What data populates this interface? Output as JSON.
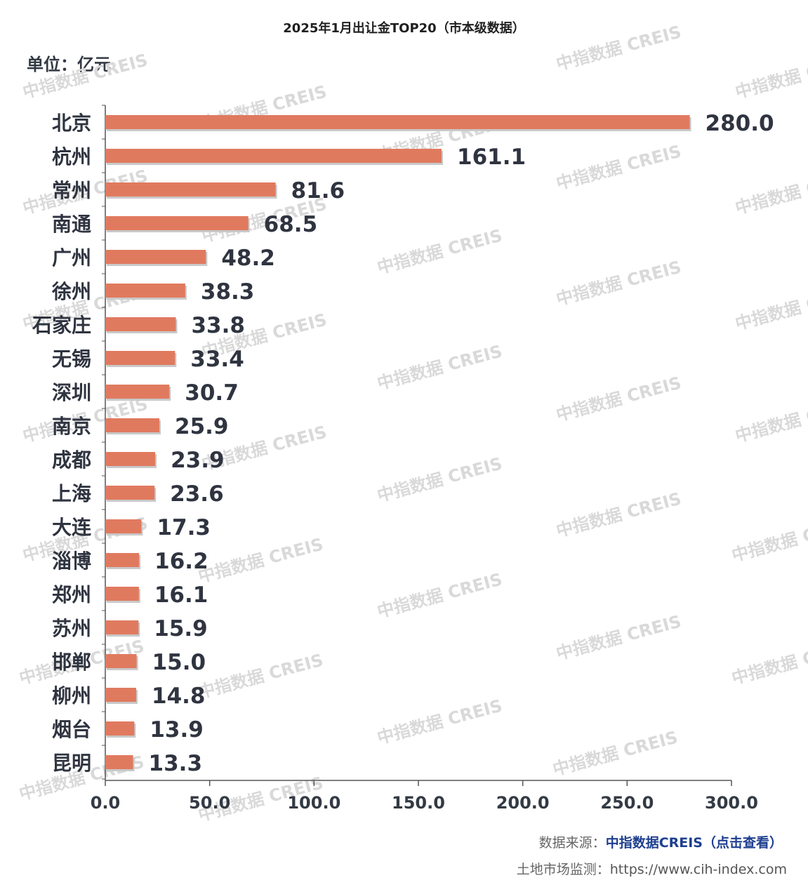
{
  "title": "2025年1月出让金TOP20（市本级数据）",
  "unit_label": "单位：亿元",
  "chart_data": {
    "type": "bar",
    "orientation": "horizontal",
    "title": "2025年1月出让金TOP20（市本级数据）",
    "ylabel": "单位：亿元",
    "xlabel": "",
    "xlim": [
      0,
      300
    ],
    "xticks": [
      "0.0",
      "50.0",
      "100.0",
      "150.0",
      "200.0",
      "250.0",
      "300.0"
    ],
    "categories": [
      "北京",
      "杭州",
      "常州",
      "南通",
      "广州",
      "徐州",
      "石家庄",
      "无锡",
      "深圳",
      "南京",
      "成都",
      "上海",
      "大连",
      "淄博",
      "郑州",
      "苏州",
      "邯郸",
      "柳州",
      "烟台",
      "昆明"
    ],
    "values": [
      280.0,
      161.1,
      81.6,
      68.5,
      48.2,
      38.3,
      33.8,
      33.4,
      30.7,
      25.9,
      23.9,
      23.6,
      17.3,
      16.2,
      16.1,
      15.9,
      15.0,
      14.8,
      13.9,
      13.3
    ],
    "value_labels": [
      "280.0",
      "161.1",
      "81.6",
      "68.5",
      "48.2",
      "38.3",
      "33.8",
      "33.4",
      "30.7",
      "25.9",
      "23.9",
      "23.6",
      "17.3",
      "16.2",
      "16.1",
      "15.9",
      "15.0",
      "14.8",
      "13.9",
      "13.3"
    ],
    "bar_color": "#e07a5f"
  },
  "watermark": "中指数据 CREIS",
  "footer": {
    "source_label": "数据来源：",
    "source_link": "中指数据CREIS（点击查看）",
    "monitor_label": "土地市场监测：",
    "monitor_url": "https://www.cih-index.com"
  }
}
